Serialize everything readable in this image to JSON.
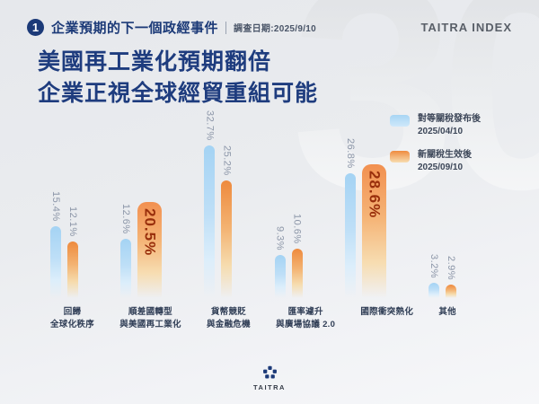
{
  "background": {
    "watermark": "30"
  },
  "header": {
    "badge": "1",
    "section_title": "企業預期的下一個政經事件",
    "survey_date": "調查日期:2025/9/10",
    "brand": "TAITRA INDEX"
  },
  "title": {
    "line1": "美國再工業化預期翻倍",
    "line2": "企業正視全球經貿重組可能"
  },
  "legend": {
    "items": [
      {
        "label": "對等關稅發布後\n2025/04/10",
        "color": "#a8d5f4"
      },
      {
        "label": "新關稅生效後\n2025/09/10",
        "color": "#ef8b3f"
      }
    ]
  },
  "footer": {
    "logo_text": "TAITRA"
  },
  "chart_data": {
    "type": "bar",
    "title": "企業預期的下一個政經事件",
    "categories": [
      "回歸\n全球化秩序",
      "順差國轉型\n與美國再工業化",
      "貨幣競貶\n與金融危機",
      "匯率遽升\n與廣場協議 2.0",
      "國際衝突熱化",
      "其他"
    ],
    "series": [
      {
        "name": "對等關稅發布後 2025/04/10",
        "key": "blue",
        "color": "#a8d5f4",
        "values": [
          15.4,
          12.6,
          32.7,
          9.3,
          26.8,
          3.2
        ]
      },
      {
        "name": "新關稅生效後 2025/09/10",
        "key": "orange",
        "color": "#ef8b3f",
        "values": [
          12.1,
          20.5,
          25.2,
          10.6,
          28.6,
          2.9
        ]
      }
    ],
    "emphasis_orange": [
      false,
      true,
      false,
      false,
      true,
      false
    ],
    "unit": "%",
    "ylim": [
      0,
      35
    ],
    "grid": false,
    "legend_position": "top-right",
    "highlight_label_color": "#992f0c",
    "value_label_color": "#8c96a8"
  }
}
